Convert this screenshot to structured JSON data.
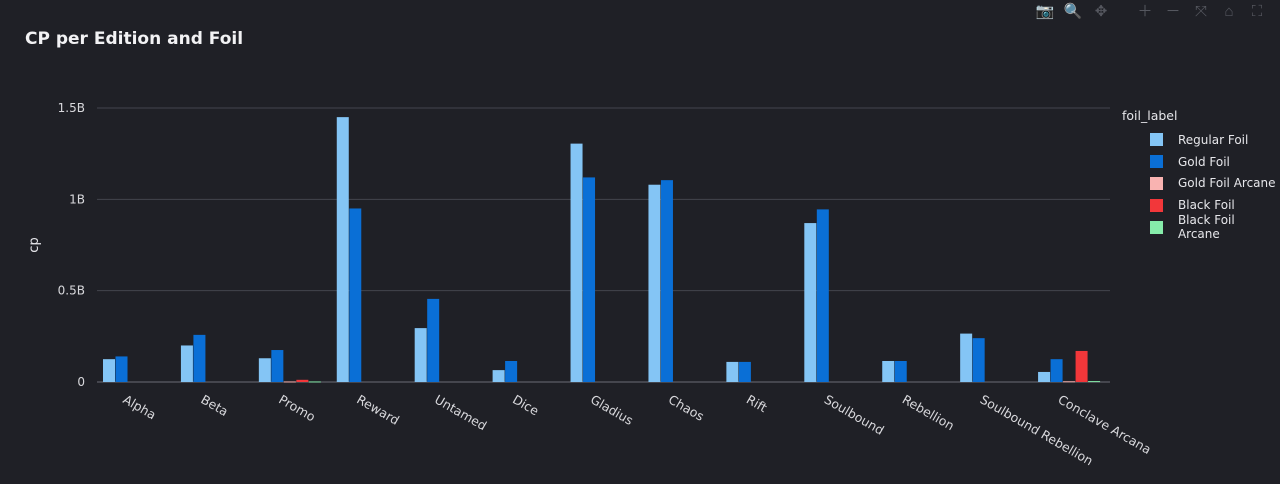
{
  "toolbar": {
    "items": [
      {
        "name": "camera-icon",
        "glyph": "📷"
      },
      {
        "name": "zoom-icon",
        "glyph": "🔍"
      },
      {
        "name": "pan-icon",
        "glyph": "✥"
      },
      {
        "name": "zoom-in-icon",
        "glyph": "＋"
      },
      {
        "name": "zoom-out-icon",
        "glyph": "－"
      },
      {
        "name": "autoscale-icon",
        "glyph": "⤧"
      },
      {
        "name": "reset-axes-icon",
        "glyph": "⌂"
      },
      {
        "name": "fullscreen-icon",
        "glyph": "⛶"
      }
    ]
  },
  "chart_data": {
    "type": "bar",
    "title": "CP per Edition and Foil",
    "ylabel": "cp",
    "xlabel": "",
    "ylim": [
      0,
      1500000000
    ],
    "yticks": [
      0,
      500000000,
      1000000000,
      1500000000
    ],
    "ytick_labels": [
      "0",
      "0.5B",
      "1B",
      "1.5B"
    ],
    "grid": true,
    "legend_title": "foil_label",
    "legend_position": "right",
    "categories": [
      "Alpha",
      "Beta",
      "Promo",
      "Reward",
      "Untamed",
      "Dice",
      "Gladius",
      "Chaos",
      "Rift",
      "Soulbound",
      "Rebellion",
      "Soulbound Rebellion",
      "Conclave Arcana"
    ],
    "series": [
      {
        "name": "Regular Foil",
        "color": "#84c5f5",
        "values": [
          125000000,
          200000000,
          130000000,
          1450000000,
          295000000,
          65000000,
          1305000000,
          1080000000,
          110000000,
          870000000,
          115000000,
          265000000,
          55000000
        ]
      },
      {
        "name": "Gold Foil",
        "color": "#0a6fd6",
        "values": [
          140000000,
          258000000,
          175000000,
          950000000,
          455000000,
          115000000,
          1120000000,
          1105000000,
          110000000,
          945000000,
          115000000,
          240000000,
          125000000
        ]
      },
      {
        "name": "Gold Foil Arcane",
        "color": "#f9b3b1",
        "values": [
          0,
          0,
          3000000,
          0,
          0,
          0,
          0,
          0,
          0,
          0,
          0,
          0,
          4000000
        ]
      },
      {
        "name": "Black Foil",
        "color": "#f2373a",
        "values": [
          0,
          0,
          12000000,
          0,
          0,
          0,
          0,
          0,
          0,
          0,
          0,
          0,
          170000000
        ]
      },
      {
        "name": "Black Foil Arcane",
        "color": "#86ecaa",
        "values": [
          0,
          0,
          3000000,
          0,
          0,
          0,
          0,
          0,
          0,
          0,
          0,
          0,
          5000000
        ]
      }
    ]
  }
}
